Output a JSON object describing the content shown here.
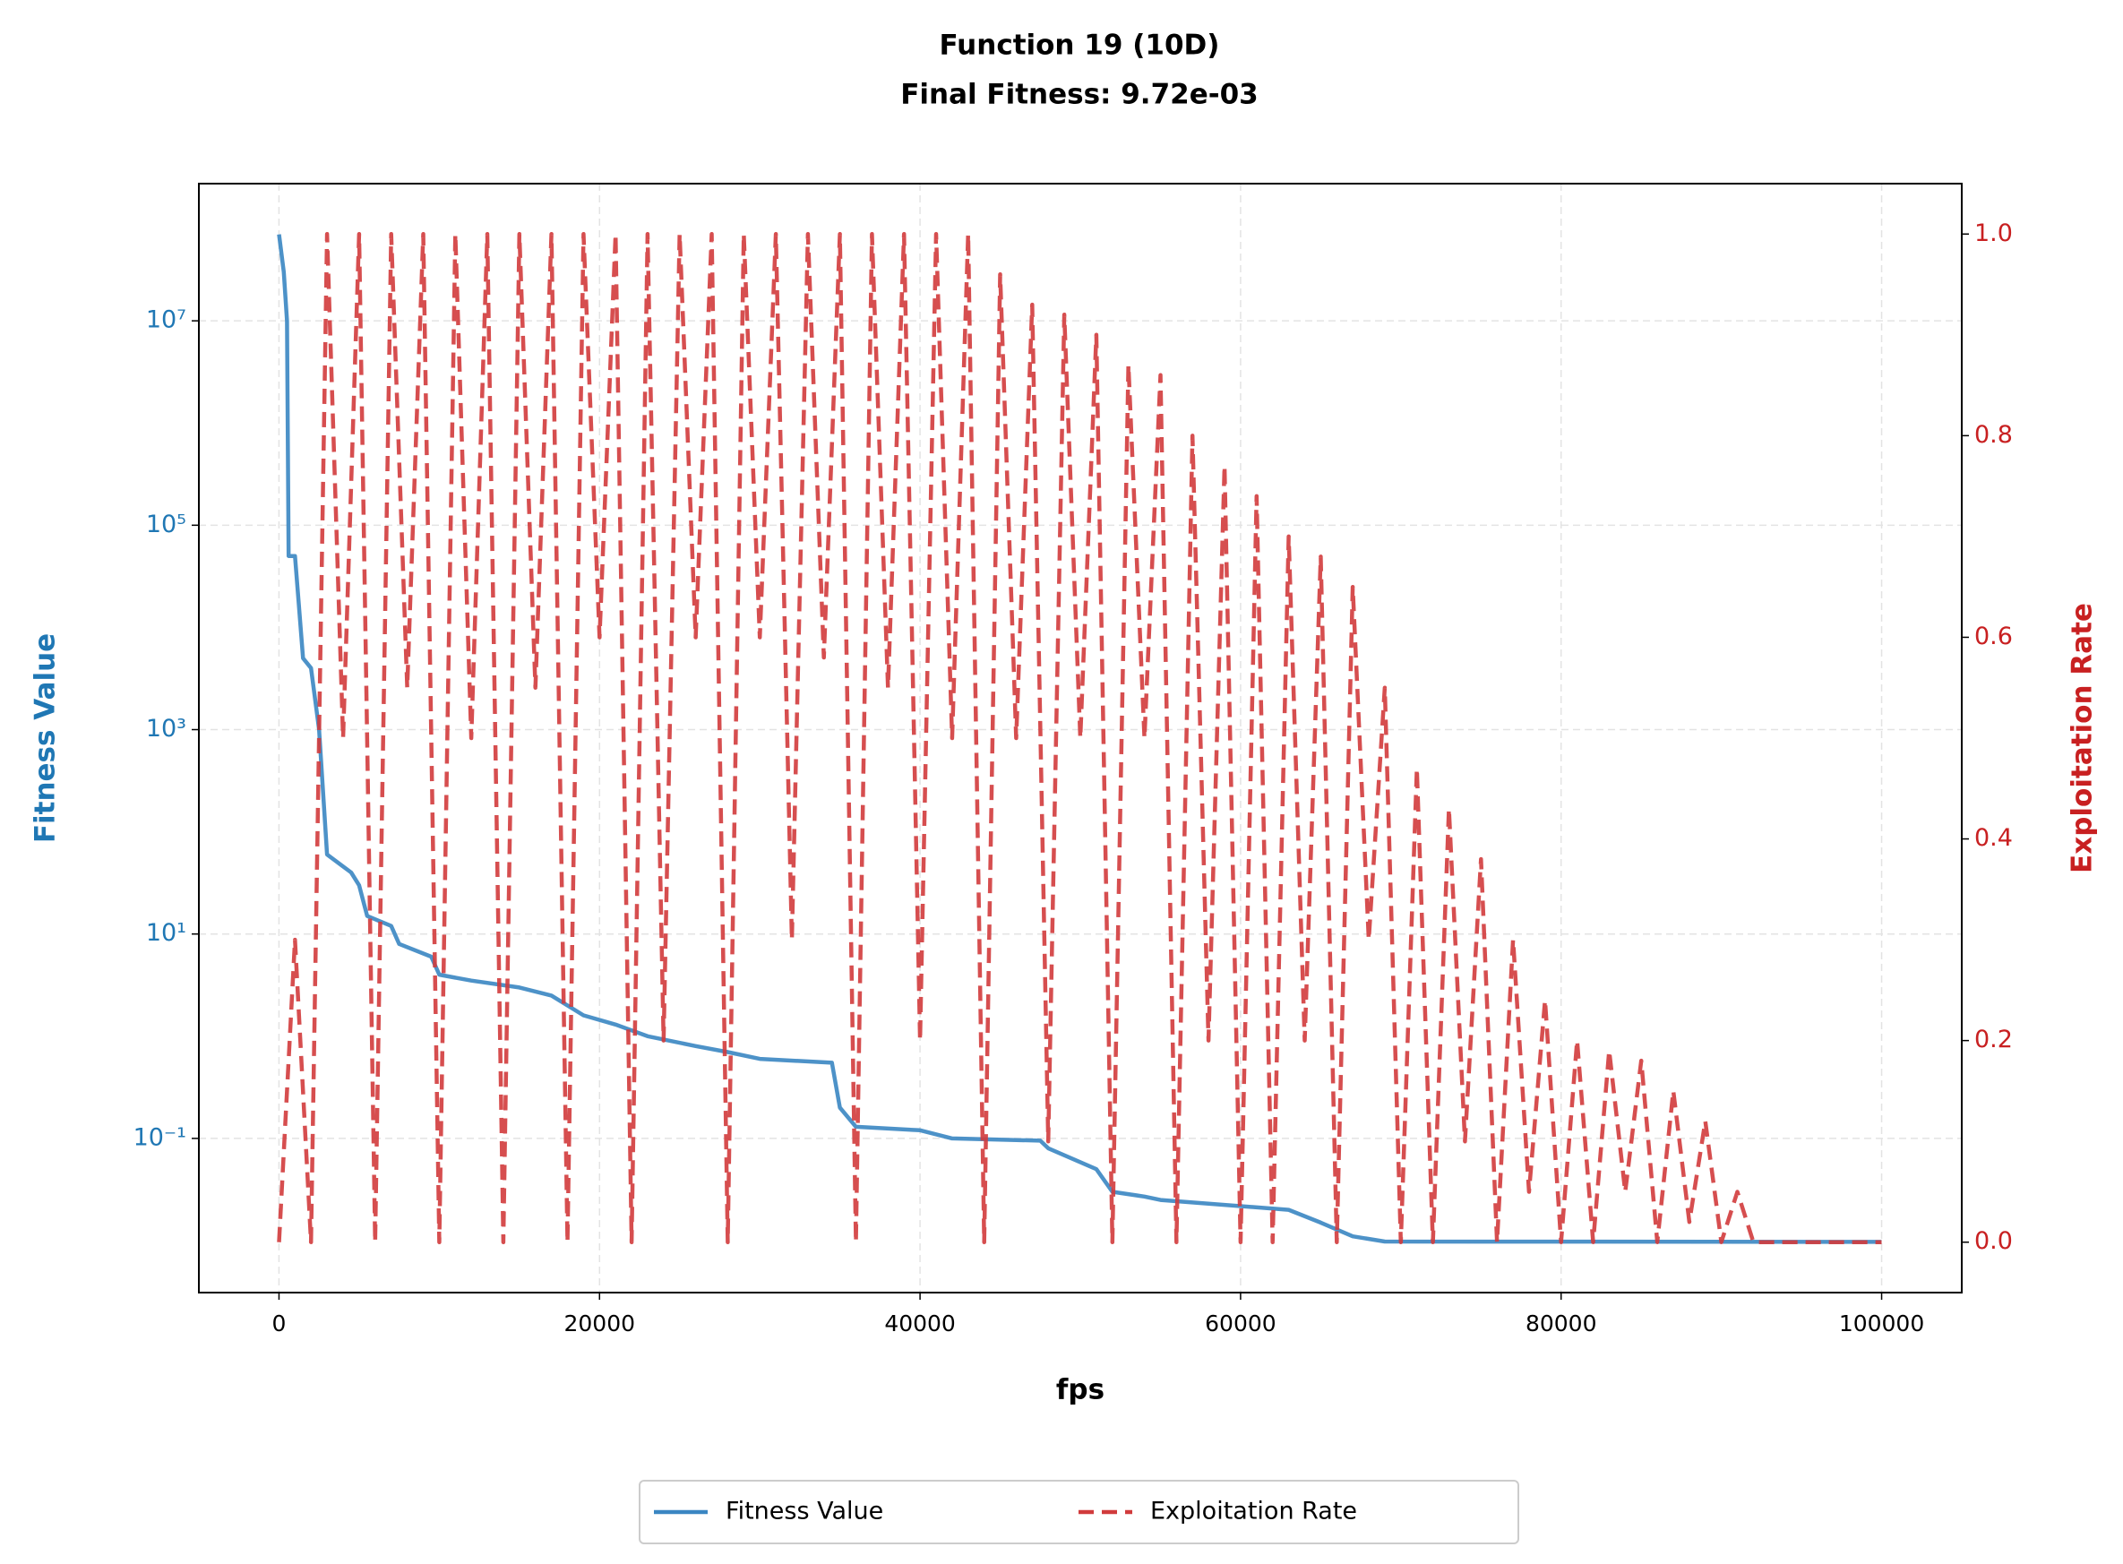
{
  "chart_data": {
    "type": "line",
    "title": "Function 19 (10D)",
    "subtitle": "Final Fitness: 9.72e-03",
    "x_label": "fps",
    "y_label": "Fitness Value",
    "y2_label": "Exploitation Rate",
    "xlim": [
      -5000,
      105000
    ],
    "xticks": [
      0,
      20000,
      40000,
      60000,
      80000,
      100000
    ],
    "ylim": [
      0.0031,
      220000000
    ],
    "log_y": true,
    "yticks": [
      {
        "value": 10000000,
        "label": "10⁷"
      },
      {
        "value": 100000,
        "label": "10⁵"
      },
      {
        "value": 1000,
        "label": "10³"
      },
      {
        "value": 10,
        "label": "10¹"
      },
      {
        "value": 0.1,
        "label": "10⁻¹"
      }
    ],
    "y2lim": [
      -0.05,
      1.05
    ],
    "y2ticks": [
      {
        "value": 0,
        "label": "0.0"
      },
      0.2,
      0.4,
      0.6,
      0.8,
      {
        "value": 1,
        "label": "1.0"
      }
    ],
    "y_color": "#1f77b4",
    "y2_color": "#c82021",
    "grid": true,
    "legend": "bottom",
    "series": [
      {
        "name": "Fitness Value",
        "color": "#3a86c2",
        "style": "solid",
        "x": [
          0,
          300,
          500,
          600,
          1000,
          1200,
          1500,
          2000,
          2500,
          3000,
          4500,
          5000,
          5500,
          7000,
          7500,
          9500,
          10000,
          12000,
          15000,
          17000,
          19000,
          21000,
          23000,
          26000,
          28000,
          30000,
          34500,
          35000,
          36000,
          40000,
          42000,
          47500,
          48000,
          51000,
          52000,
          54000,
          55000,
          63000,
          65000,
          67000,
          69000,
          100000
        ],
        "values": [
          70000000,
          30000000,
          10000000,
          50000,
          50000,
          20000,
          5000,
          4000,
          1000,
          60,
          40,
          30,
          15,
          12,
          8,
          6,
          4,
          3.5,
          3,
          2.5,
          1.6,
          1.3,
          1,
          0.8,
          0.7,
          0.6,
          0.55,
          0.2,
          0.13,
          0.12,
          0.1,
          0.095,
          0.08,
          0.05,
          0.03,
          0.027,
          0.025,
          0.02,
          0.015,
          0.011,
          0.0098,
          0.00972
        ]
      },
      {
        "name": "Exploitation Rate",
        "color": "#d13b3c",
        "style": "dashed",
        "axis": "y2",
        "x": [
          0,
          1000,
          2000,
          3000,
          4000,
          5000,
          6000,
          7000,
          8000,
          9000,
          10000,
          11000,
          12000,
          13000,
          14000,
          15000,
          16000,
          17000,
          18000,
          19000,
          20000,
          21000,
          22000,
          23000,
          24000,
          25000,
          26000,
          27000,
          28000,
          29000,
          30000,
          31000,
          32000,
          33000,
          34000,
          35000,
          36000,
          37000,
          38000,
          39000,
          40000,
          41000,
          42000,
          43000,
          44000,
          45000,
          46000,
          47000,
          48000,
          49000,
          50000,
          51000,
          52000,
          53000,
          54000,
          55000,
          56000,
          57000,
          58000,
          59000,
          60000,
          61000,
          62000,
          63000,
          64000,
          65000,
          66000,
          67000,
          68000,
          69000,
          70000,
          71000,
          72000,
          73000,
          74000,
          75000,
          76000,
          77000,
          78000,
          79000,
          80000,
          81000,
          82000,
          83000,
          84000,
          85000,
          86000,
          87000,
          88000,
          89000,
          90000,
          91000,
          92000,
          93000,
          94000,
          95000,
          96000,
          97000,
          98000,
          99000,
          100000
        ],
        "values": [
          0,
          0.3,
          0,
          1,
          0.5,
          1,
          0,
          1,
          0.55,
          1,
          0,
          1,
          0.5,
          1,
          0,
          1,
          0.55,
          1,
          0,
          1,
          0.6,
          1,
          0,
          1,
          0.2,
          1,
          0.6,
          1,
          0,
          1,
          0.6,
          1,
          0.3,
          1,
          0.58,
          1,
          0,
          1,
          0.55,
          1,
          0.2,
          1,
          0.5,
          1,
          0,
          0.96,
          0.5,
          0.93,
          0.1,
          0.92,
          0.5,
          0.9,
          0,
          0.87,
          0.5,
          0.86,
          0,
          0.8,
          0.2,
          0.77,
          0,
          0.74,
          0,
          0.7,
          0.2,
          0.68,
          0,
          0.65,
          0.3,
          0.55,
          0,
          0.47,
          0,
          0.43,
          0.1,
          0.38,
          0,
          0.3,
          0.05,
          0.24,
          0,
          0.2,
          0,
          0.19,
          0.05,
          0.18,
          0,
          0.15,
          0.02,
          0.12,
          0,
          0.05,
          0,
          0,
          0,
          0,
          0,
          0,
          0,
          0,
          0
        ]
      }
    ]
  }
}
